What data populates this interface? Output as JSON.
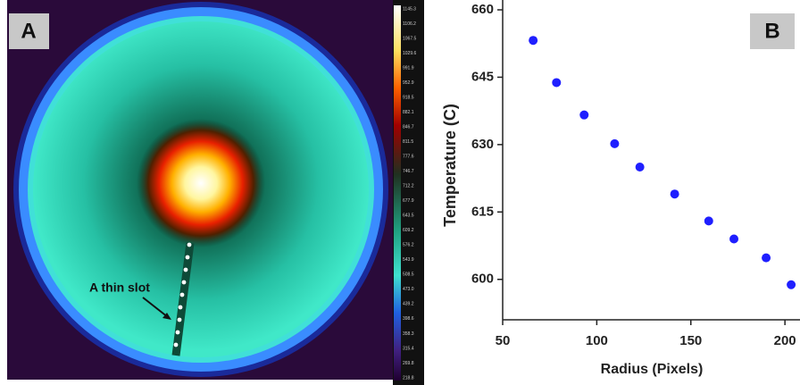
{
  "image_panel": {
    "label": "A",
    "annotation": "A thin slot",
    "colorbar_labels": [
      "1145.3",
      "1106.2",
      "1067.5",
      "1029.6",
      "991.9",
      "952.9",
      "918.5",
      "882.1",
      "846.7",
      "811.5",
      "777.6",
      "746.7",
      "712.2",
      "677.9",
      "643.5",
      "609.2",
      "576.2",
      "543.9",
      "508.5",
      "473.0",
      "439.2",
      "398.6",
      "358.3",
      "315.4",
      "269.8",
      "218.8"
    ]
  },
  "chart_data": {
    "type": "scatter",
    "panel_label": "B",
    "x_label": "Radius (Pixels)",
    "y_label": "Temperature (C)",
    "series": [
      {
        "name": "Temperature",
        "color": "#1f1fff",
        "x": [
          66.2,
          78.6,
          93.3,
          109.5,
          122.9,
          141.4,
          159.5,
          172.9,
          190,
          203.3
        ],
        "values": [
          653.2,
          643.8,
          636.6,
          630.2,
          625.0,
          619.0,
          613.0,
          609.0,
          604.8,
          598.8
        ]
      }
    ],
    "xlim": [
      50,
      208
    ],
    "xticks": [
      50,
      100,
      150,
      200
    ],
    "ylim": [
      591,
      660
    ],
    "yticks": [
      600,
      615,
      630,
      645,
      660
    ]
  }
}
